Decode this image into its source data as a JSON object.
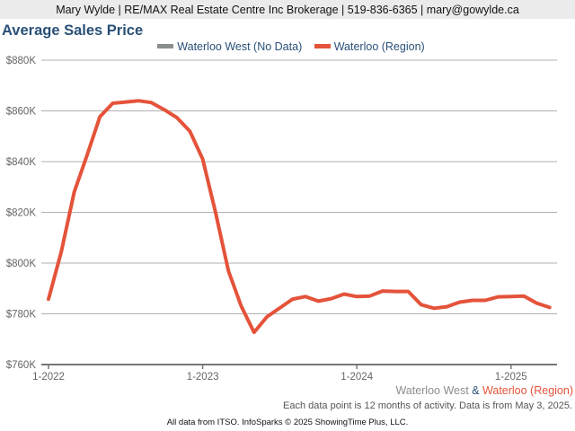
{
  "banner": "Mary Wylde | RE/MAX Real Estate Centre Inc Brokerage | 519-836-6365 | mary@gowylde.ca",
  "chart_data": {
    "type": "line",
    "title": "Average Sales Price",
    "ylim": [
      760000,
      880000
    ],
    "yticks": [
      760000,
      780000,
      800000,
      820000,
      840000,
      860000,
      880000
    ],
    "ytick_labels": [
      "$760K",
      "$780K",
      "$800K",
      "$820K",
      "$840K",
      "$860K",
      "$880K"
    ],
    "xtick_labels": [
      "1-2022",
      "1-2023",
      "1-2024",
      "1-2025"
    ],
    "x_start": "2022-01",
    "x_end": "2025-04",
    "grid": true,
    "legend_position": "top",
    "series": [
      {
        "name": "Waterloo West (No Data)",
        "color": "#8a8f8c",
        "values": []
      },
      {
        "name": "Waterloo (Region)",
        "color": "#e4533a",
        "values": [
          785800,
          804600,
          828000,
          842500,
          857700,
          863000,
          863500,
          864000,
          863300,
          860500,
          857300,
          852000,
          841000,
          820000,
          797000,
          783000,
          772700,
          778800,
          782300,
          785800,
          786800,
          785000,
          786000,
          787800,
          786800,
          787000,
          789000,
          788800,
          788800,
          783600,
          782200,
          782800,
          784600,
          785300,
          785300,
          786700,
          786800,
          787000,
          784200,
          782500
        ]
      }
    ]
  },
  "footer": {
    "series_a": "Waterloo West",
    "amp": "&",
    "series_b": "Waterloo (Region)",
    "note": "Each data point is 12 months of activity. Data is from May 3, 2025.",
    "credit": "All data from ITSO. InfoSparks © 2025 ShowingTime Plus, LLC."
  }
}
